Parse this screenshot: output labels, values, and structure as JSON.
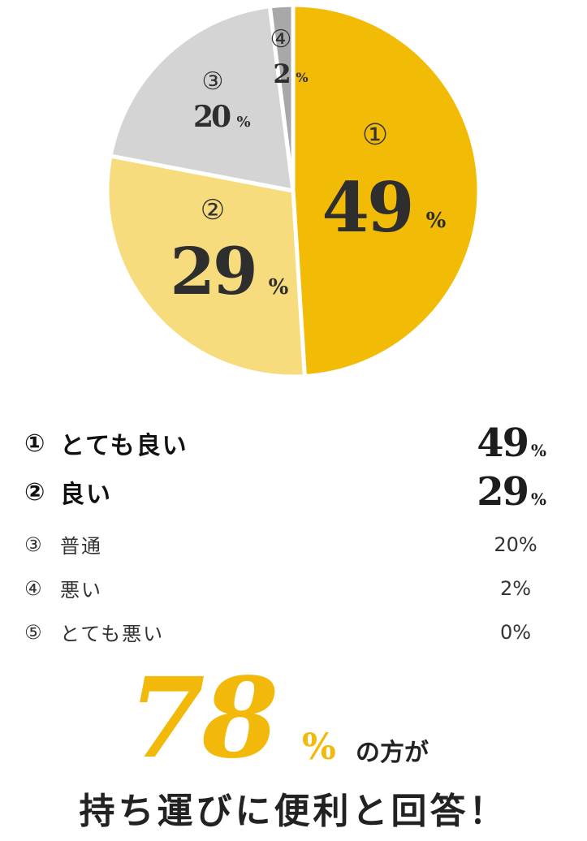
{
  "chart_data": {
    "type": "pie",
    "slices": [
      {
        "mark": "①",
        "label": "とても良い",
        "value": 49,
        "color": "#f2bb05",
        "pct_text": "%"
      },
      {
        "mark": "②",
        "label": "良い",
        "value": 29,
        "color": "#f7dc7e",
        "pct_text": "%"
      },
      {
        "mark": "③",
        "label": "普通",
        "value": 20,
        "color": "#d4d4d4",
        "pct_text": "%"
      },
      {
        "mark": "④",
        "label": "悪い",
        "value": 2,
        "color": "#a8a8a8",
        "pct_text": "%"
      },
      {
        "mark": "⑤",
        "label": "とても悪い",
        "value": 0,
        "color": "#cccccc",
        "pct_text": "%"
      }
    ]
  },
  "legend": [
    {
      "mark": "①",
      "label": "とても良い",
      "num": "49",
      "pct": "%",
      "style": "major"
    },
    {
      "mark": "②",
      "label": "良い",
      "num": "29",
      "pct": "%",
      "style": "major"
    },
    {
      "mark": "③",
      "label": "普通",
      "value": "20%",
      "style": "minor"
    },
    {
      "mark": "④",
      "label": "悪い",
      "value": "2%",
      "style": "minor"
    },
    {
      "mark": "⑤",
      "label": "とても悪い",
      "value": "0%",
      "style": "minor"
    }
  ],
  "summary": {
    "number": "78",
    "percent": "%",
    "suffix": "の方が",
    "headline": "持ち運びに便利と回答！"
  },
  "colors": {
    "accent": "#f2b90a",
    "text_dark": "#222222"
  }
}
